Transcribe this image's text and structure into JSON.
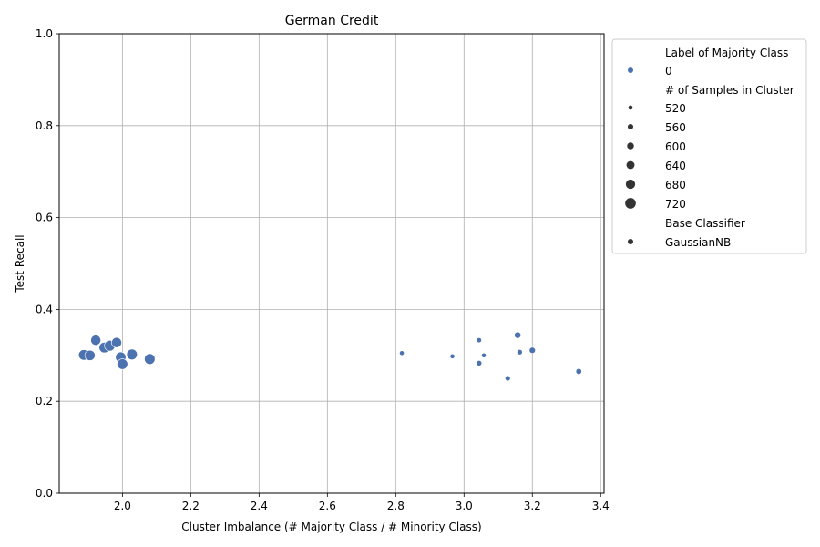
{
  "chart_data": {
    "type": "scatter",
    "title": "German Credit",
    "xlabel": "Cluster Imbalance (# Majority Class / # Minority Class)",
    "ylabel": "Test Recall",
    "xlim": [
      1.815,
      3.41
    ],
    "ylim": [
      0.0,
      1.0
    ],
    "x_ticks": [
      2.0,
      2.2,
      2.4,
      2.6,
      2.8,
      3.0,
      3.2,
      3.4
    ],
    "x_tick_labels": [
      "2.0",
      "2.2",
      "2.4",
      "2.6",
      "2.8",
      "3.0",
      "3.2",
      "3.4"
    ],
    "y_ticks": [
      0.0,
      0.2,
      0.4,
      0.6,
      0.8,
      1.0
    ],
    "y_tick_labels": [
      "0.0",
      "0.2",
      "0.4",
      "0.6",
      "0.8",
      "1.0"
    ],
    "grid": true,
    "legend_position": "outside-right-top",
    "colors": {
      "point": "#4c72b0",
      "grid": "#b0b0b0"
    },
    "size_scale": {
      "min_samples": 500,
      "max_samples": 730,
      "min_radius": 2.0,
      "max_radius": 6.0
    },
    "points": [
      {
        "x": 1.887,
        "y": 0.301,
        "samples": 715
      },
      {
        "x": 1.905,
        "y": 0.3,
        "samples": 710
      },
      {
        "x": 1.922,
        "y": 0.333,
        "samples": 705
      },
      {
        "x": 1.947,
        "y": 0.317,
        "samples": 715
      },
      {
        "x": 1.963,
        "y": 0.321,
        "samples": 720
      },
      {
        "x": 1.983,
        "y": 0.328,
        "samples": 705
      },
      {
        "x": 1.995,
        "y": 0.296,
        "samples": 715
      },
      {
        "x": 2.0,
        "y": 0.281,
        "samples": 720
      },
      {
        "x": 2.028,
        "y": 0.302,
        "samples": 720
      },
      {
        "x": 2.08,
        "y": 0.292,
        "samples": 720
      },
      {
        "x": 2.818,
        "y": 0.305,
        "samples": 535
      },
      {
        "x": 2.966,
        "y": 0.298,
        "samples": 535
      },
      {
        "x": 3.044,
        "y": 0.333,
        "samples": 545
      },
      {
        "x": 3.044,
        "y": 0.283,
        "samples": 560
      },
      {
        "x": 3.058,
        "y": 0.3,
        "samples": 535
      },
      {
        "x": 3.128,
        "y": 0.25,
        "samples": 550
      },
      {
        "x": 3.157,
        "y": 0.344,
        "samples": 590
      },
      {
        "x": 3.163,
        "y": 0.307,
        "samples": 555
      },
      {
        "x": 3.2,
        "y": 0.311,
        "samples": 580
      },
      {
        "x": 3.336,
        "y": 0.265,
        "samples": 570
      }
    ]
  },
  "legend": {
    "hue_title": "Label of Majority Class",
    "hue_items": [
      {
        "label": "0",
        "color": "#4c72b0"
      }
    ],
    "size_title": "# of Samples in Cluster",
    "size_items": [
      {
        "label": "520",
        "samples": 520
      },
      {
        "label": "560",
        "samples": 560
      },
      {
        "label": "600",
        "samples": 600
      },
      {
        "label": "640",
        "samples": 640
      },
      {
        "label": "680",
        "samples": 680
      },
      {
        "label": "720",
        "samples": 720
      }
    ],
    "style_title": "Base Classifier",
    "style_items": [
      {
        "label": "GaussianNB"
      }
    ]
  }
}
